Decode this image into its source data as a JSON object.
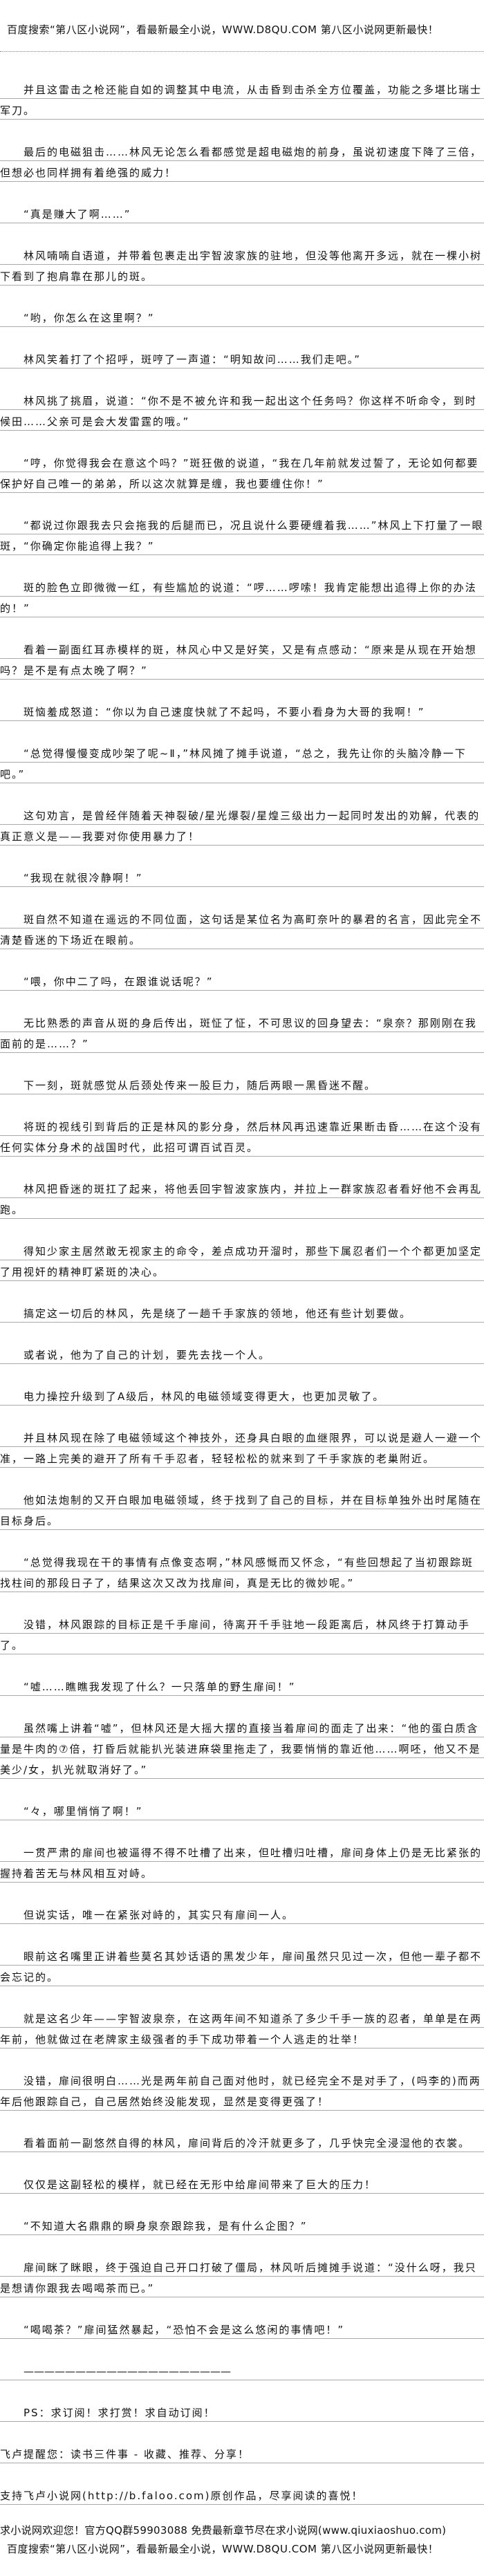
{
  "header": {
    "banner": "百度搜索“第八区小说网”，看最新最全小说，WWW.D8QU.COM  第八区小说网更新最快！"
  },
  "paragraphs": [
    "并且这雷击之枪还能自如的调整其中电流，从击昏到击杀全方位覆盖，功能之多堪比瑞士军刀。",
    "最后的电磁狙击……林风无论怎么看都感觉是超电磁炮的前身，虽说初速度下降了三倍，但想必也同样拥有着绝强的威力！",
    "“真是赚大了啊……”",
    "林风喃喃自语道，并带着包裹走出宇智波家族的驻地，但没等他离开多远，就在一棵小树下看到了抱肩靠在那儿的斑。",
    "“哟，你怎么在这里啊？”",
    "林风笑着打了个招呼，斑哼了一声道：“明知故问……我们走吧。”",
    "林风挑了挑眉，说道：“你不是不被允许和我一起出这个任务吗？你这样不听命令，到时候田……父亲可是会大发雷霆的哦。”",
    "“哼，你觉得我会在意这个吗？”斑狂傲的说道，“我在几年前就发过誓了，无论如何都要保护好自己唯一的弟弟，所以这次就算是缠，我也要缠住你！”",
    "“都说过你跟我去只会拖我的后腿而已，况且说什么要硬缠着我……”林风上下打量了一眼斑，“你确定你能追得上我？”",
    "斑的脸色立即微微一红，有些尴尬的说道：“啰……啰嗦！我肯定能想出追得上你的办法的！”",
    "看着一副面红耳赤模样的斑，林风心中又是好笑，又是有点感动：“原来是从现在开始想吗？是不是有点太晚了啊？”",
    "斑恼羞成怒道：“你以为自己速度快就了不起吗，不要小看身为大哥的我啊！”",
    "“总觉得慢慢变成吵架了呢~Ⅱ，”林风摊了摊手说道，“总之，我先让你的头脑冷静一下吧。”",
    "这句劝言，是曾经伴随着天神裂破/星光爆裂/星煌三级出力一起同时发出的劝解，代表的真正意义是——我要对你使用暴力了！",
    "“我现在就很冷静啊！”",
    "斑自然不知道在遥远的不同位面，这句话是某位名为高町奈叶的暴君的名言，因此完全不清楚昏迷的下场近在眼前。",
    "“喂，你中二了吗，在跟谁说话呢？”",
    "无比熟悉的声音从斑的身后传出，斑怔了怔，不可思议的回身望去：“泉奈？那刚刚在我面前的是……？”",
    "下一刻，斑就感觉从后颈处传来一股巨力，随后两眼一黑昏迷不醒。",
    "将斑的视线引到背后的正是林风的影分身，然后林风再迅速靠近果断击昏……在这个没有任何实体分身术的战国时代，此招可谓百试百灵。",
    "林风把昏迷的斑扛了起来，将他丢回宇智波家族内，并拉上一群家族忍者看好他不会再乱跑。",
    "得知少家主居然敢无视家主的命令，差点成功开溜时，那些下属忍者们一个个都更加坚定了用视奸的精神盯紧斑的决心。",
    "搞定这一切后的林风，先是绕了一趟千手家族的领地，他还有些计划要做。",
    "或者说，他为了自己的计划，要先去找一个人。",
    "电力操控升级到了A级后，林风的电磁领域变得更大，也更加灵敏了。",
    "并且林风现在除了电磁领域这个神技外，还身具白眼的血继限界，可以说是避人一避一个准，一路上完美的避开了所有千手忍者，轻轻松松的就来到了千手家族的老巢附近。",
    "他如法炮制的又开白眼加电磁领域，终于找到了自己的目标，并在目标单独外出时尾随在目标身后。",
    "“总觉得我现在干的事情有点像变态啊，”林风感慨而又怀念，“有些回想起了当初跟踪斑找柱间的那段日子了，结果这次又改为找扉间，真是无比的微妙呢。”",
    "没错，林风跟踪的目标正是千手扉间，待离开千手驻地一段距离后，林风终于打算动手了。",
    "“嘘……瞧瞧我发现了什么？一只落单的野生扉间！”",
    "虽然嘴上讲着“嘘”，但林风还是大摇大摆的直接当着扉间的面走了出来：“他的蛋白质含量是牛肉的⑦倍，打昏后就能扒光装进麻袋里拖走了，我要悄悄的靠近他……啊呸，他又不是美少/女，扒光就取消好了。”",
    "“々，哪里悄悄了啊！”",
    "一贯严肃的扉间也被逼得不得不吐槽了出来，但吐槽归吐槽，扉间身体上仍是无比紧张的握持着苦无与林风相互对峙。",
    "但说实话，唯一在紧张对峙的，其实只有扉间一人。",
    "眼前这名嘴里正讲着些莫名其妙话语的黑发少年，扉间虽然只见过一次，但他一辈子都不会忘记的。",
    "就是这名少年——宇智波泉奈，在这两年间不知道杀了多少千手一族的忍者，单单是在两年前，他就做过在老牌家主级强者的手下成功带着一个人逃走的壮举！",
    "没错，扉间很明白……光是两年前自己面对他时，就已经完全不是对手了，(吗李的)而两年后他跟踪自己，自己居然始终没能发现，显然是变得更强了！",
    "看着面前一副悠然自得的林风，扉间背后的冷汗就更多了，几乎快完全浸湿他的衣裳。",
    "仅仅是这副轻松的模样，就已经在无形中给扉间带来了巨大的压力！",
    "“不知道大名鼎鼎的瞬身泉奈跟踪我，是有什么企图？”",
    "扉间眯了眯眼，终于强迫自己开口打破了僵局，林风听后摊摊手说道：“没什么呀，我只是想请你跟我去喝喝茶而已。”",
    "“喝喝茶？”扉间猛然暴起，“恐怕不会是这么悠闲的事情吧！”"
  ],
  "separator": "————————————————————",
  "ps": "PS：求订阅！求打赏！求自动订阅！",
  "footer": {
    "faloo_reminder": "飞卢提醒您：读书三件事 - 收藏、推荐、分享！",
    "faloo_support": "支持飞卢小说网(http://b.faloo.com)原创作品，尽享阅读的喜悦！",
    "qiuxiaoshuo": "求小说网欢迎您！官方QQ群59903088 免费最新章节尽在求小说网(www.qiuxiaoshuo.com)",
    "banner": "百度搜索“第八区小说网”，看最新最全小说，WWW.D8QU.COM  第八区小说网更新最快！"
  }
}
